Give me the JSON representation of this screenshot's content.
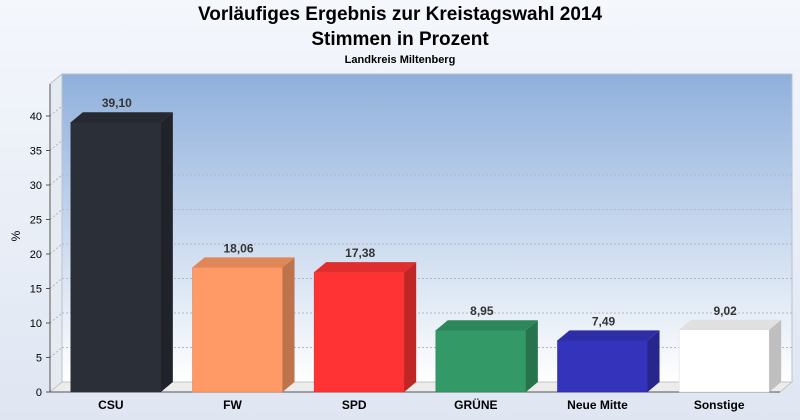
{
  "header": {
    "title_line1": "Vorläufiges Ergebnis zur Kreistagswahl 2014",
    "title_line2": "Stimmen in Prozent",
    "subtitle": "Landkreis Miltenberg"
  },
  "chart_data": {
    "type": "bar",
    "title": "Vorläufiges Ergebnis zur Kreistagswahl 2014",
    "subtitle": "Stimmen in Prozent",
    "ylabel": "%",
    "xlabel": "",
    "ylim": [
      0,
      45
    ],
    "yticks": [
      0,
      5,
      10,
      15,
      20,
      25,
      30,
      35,
      40
    ],
    "grid": true,
    "categories": [
      "CSU",
      "FW",
      "SPD",
      "GRÜNE",
      "Neue Mitte",
      "Sonstige"
    ],
    "values": [
      39.1,
      18.06,
      17.38,
      8.95,
      7.49,
      9.02
    ],
    "value_labels": [
      "39,10",
      "18,06",
      "17,38",
      "8,95",
      "7,49",
      "9,02"
    ],
    "colors": [
      "#2b2f38",
      "#ff9966",
      "#ff3333",
      "#339966",
      "#3333bb",
      "#ffffff"
    ]
  }
}
